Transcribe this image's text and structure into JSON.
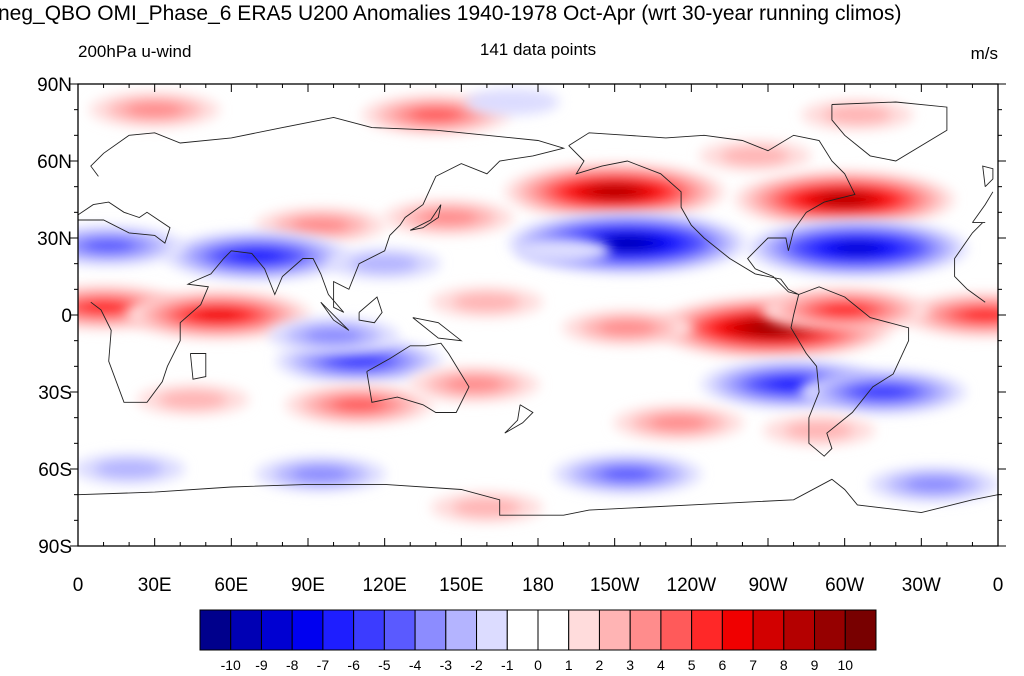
{
  "title": "neg_QBO OMI_Phase_6 ERA5 U200 Anomalies 1940-1978 Oct-Apr (wrt 30-year running climos)",
  "subtitle_left": "200hPa u-wind",
  "subtitle_center": "141 data points",
  "subtitle_right": "m/s",
  "lat_labels": [
    "90N",
    "60N",
    "30N",
    "0",
    "30S",
    "60S",
    "90S"
  ],
  "lon_labels": [
    "0",
    "30E",
    "60E",
    "90E",
    "120E",
    "150E",
    "180",
    "150W",
    "120W",
    "90W",
    "60W",
    "30W",
    "0"
  ],
  "colorbar": {
    "labels": [
      "-10",
      "-9",
      "-8",
      "-7",
      "-6",
      "-5",
      "-4",
      "-3",
      "-2",
      "-1",
      "0",
      "1",
      "2",
      "3",
      "4",
      "5",
      "6",
      "7",
      "8",
      "9",
      "10"
    ],
    "colors": [
      "#00008c",
      "#0000b4",
      "#0000d2",
      "#0000f0",
      "#1e1eff",
      "#3c3cff",
      "#5a5aff",
      "#8c8cff",
      "#b4b4ff",
      "#dcdcff",
      "#ffffff",
      "#ffffff",
      "#ffdcdc",
      "#ffb4b4",
      "#ff8c8c",
      "#ff5a5a",
      "#ff2828",
      "#f00000",
      "#d20000",
      "#b40000",
      "#960000",
      "#780000"
    ]
  },
  "chart_data": {
    "type": "heatmap",
    "variable": "U200 anomaly",
    "units": "m/s",
    "levels": [
      -10,
      -9,
      -8,
      -7,
      -6,
      -5,
      -4,
      -3,
      -2,
      -1,
      0,
      1,
      2,
      3,
      4,
      5,
      6,
      7,
      8,
      9,
      10
    ],
    "x_range_deg_east": [
      0,
      360
    ],
    "y_range_deg": [
      -90,
      90
    ],
    "anomaly_centers": [
      {
        "lon": 140,
        "lat": 78,
        "value": 4
      },
      {
        "lon": 30,
        "lat": 80,
        "value": 3
      },
      {
        "lon": 305,
        "lat": 78,
        "value": 2
      },
      {
        "lon": 170,
        "lat": 83,
        "value": -1
      },
      {
        "lon": 210,
        "lat": 48,
        "value": 8
      },
      {
        "lon": 300,
        "lat": 45,
        "value": 8
      },
      {
        "lon": 145,
        "lat": 38,
        "value": 3
      },
      {
        "lon": 95,
        "lat": 35,
        "value": 3
      },
      {
        "lon": 265,
        "lat": 62,
        "value": 2
      },
      {
        "lon": 215,
        "lat": 28,
        "value": -9
      },
      {
        "lon": 305,
        "lat": 26,
        "value": -8
      },
      {
        "lon": 70,
        "lat": 23,
        "value": -6
      },
      {
        "lon": 12,
        "lat": 27,
        "value": -4
      },
      {
        "lon": 120,
        "lat": 20,
        "value": -2
      },
      {
        "lon": 190,
        "lat": 25,
        "value": -1
      },
      {
        "lon": 10,
        "lat": 3,
        "value": 5
      },
      {
        "lon": 55,
        "lat": 0,
        "value": 6
      },
      {
        "lon": 355,
        "lat": 0,
        "value": 5
      },
      {
        "lon": 272,
        "lat": -5,
        "value": 9
      },
      {
        "lon": 300,
        "lat": 2,
        "value": 5
      },
      {
        "lon": 215,
        "lat": -5,
        "value": 3
      },
      {
        "lon": 160,
        "lat": 5,
        "value": 2
      },
      {
        "lon": 110,
        "lat": -18,
        "value": -5
      },
      {
        "lon": 100,
        "lat": -8,
        "value": -3
      },
      {
        "lon": 280,
        "lat": -27,
        "value": -6
      },
      {
        "lon": 315,
        "lat": -30,
        "value": -5
      },
      {
        "lon": 110,
        "lat": -35,
        "value": 4
      },
      {
        "lon": 155,
        "lat": -27,
        "value": 3
      },
      {
        "lon": 45,
        "lat": -33,
        "value": 2
      },
      {
        "lon": 235,
        "lat": -42,
        "value": 3
      },
      {
        "lon": 290,
        "lat": -45,
        "value": 2
      },
      {
        "lon": 95,
        "lat": -62,
        "value": -3
      },
      {
        "lon": 215,
        "lat": -62,
        "value": -4
      },
      {
        "lon": 335,
        "lat": -66,
        "value": -3
      },
      {
        "lon": 20,
        "lat": -60,
        "value": -2
      },
      {
        "lon": 160,
        "lat": -75,
        "value": 2
      }
    ]
  }
}
